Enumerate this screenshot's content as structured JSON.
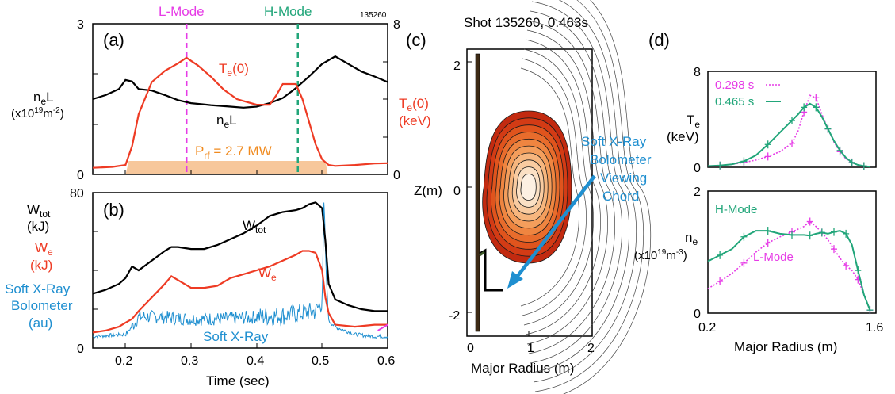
{
  "colors": {
    "black": "#000000",
    "red": "#ee3b24",
    "magenta": "#e63be6",
    "green": "#22a67a",
    "blue": "#1f8fd0",
    "orange": "#f6a54b",
    "rf_fill": "#f7c79b"
  },
  "panels": {
    "a": {
      "label": "(a)",
      "shot": "135260",
      "lmode": "L-Mode",
      "hmode": "H-Mode",
      "yl_top": "3",
      "yl_bot": "0",
      "yr_top": "8",
      "yr_bot": "0",
      "nel_axis": "n",
      "nel_axis_sub": "e",
      "nel_axis_tail": "L",
      "nel_units_a": "(x10",
      "nel_units_sup": "19",
      "nel_units_b": "m",
      "nel_units_sup2": "-2",
      "nel_units_c": ")",
      "te_axis": "T",
      "te_axis_sub": "e",
      "te_axis_tail": "(0)",
      "te_units": "(keV)",
      "te_curve_label": "T",
      "te_curve_sub": "e",
      "te_curve_tail": "(0)",
      "nel_curve_label": "n",
      "nel_curve_sub": "e",
      "nel_curve_tail": "L",
      "prf_label": "P",
      "prf_sub": "rf",
      "prf_tail": " = 2.7 MW"
    },
    "b": {
      "label": "(b)",
      "y_top": "80",
      "y_bot": "0",
      "x_ticks": [
        "0.2",
        "0.3",
        "0.4",
        "0.5",
        "0.6"
      ],
      "xlabel": "Time (sec)",
      "wtot_axis": "W",
      "wtot_axis_sub": "tot",
      "wtot_units": "(kJ)",
      "we_axis": "W",
      "we_axis_sub": "e",
      "we_units": "(kJ)",
      "sxr_axis_1": "Soft X-Ray",
      "sxr_axis_2": "Bolometer",
      "sxr_axis_3": "(au)",
      "wtot_curve": "W",
      "wtot_curve_sub": "tot",
      "we_curve": "W",
      "we_curve_sub": "e",
      "sxr_curve": "Soft X-Ray"
    },
    "c": {
      "label": "(c)",
      "title": "Shot 135260, 0.463s",
      "ylabel": "Z(m)",
      "xlabel": "Major Radius (m)",
      "y_ticks": [
        "2",
        "0",
        "-2"
      ],
      "x_ticks": [
        "0",
        "1",
        "2"
      ],
      "chord_1": "Soft X-Ray",
      "chord_2": "Bolometer",
      "chord_3": "Viewing",
      "chord_4": "Chord"
    },
    "d": {
      "label": "(d)",
      "te_top": "8",
      "te_bot": "0",
      "ne_top": "2",
      "ne_bot": "0",
      "te_axis": "T",
      "te_axis_sub": "e",
      "te_units": "(keV)",
      "ne_axis": "n",
      "ne_axis_sub": "e",
      "ne_units_a": "(x10",
      "ne_units_sup": "19",
      "ne_units_b": "m",
      "ne_units_sup2": "-3",
      "ne_units_c": ")",
      "legend_1": "0.298 s",
      "legend_2": "0.465 s",
      "hmode": "H-Mode",
      "lmode": "L-Mode",
      "x_ticks": [
        "0.2",
        "1.6"
      ],
      "xlabel": "Major Radius (m)"
    }
  },
  "chart_data": [
    {
      "id": "a",
      "type": "line",
      "xlim": [
        0.15,
        0.6
      ],
      "ylim_left": [
        0,
        3
      ],
      "ylim_right": [
        0,
        8
      ],
      "vlines": [
        {
          "x": 0.293,
          "label": "L-Mode"
        },
        {
          "x": 0.463,
          "label": "H-Mode"
        }
      ],
      "series": [
        {
          "axis": "left",
          "x": [
            0.15,
            0.17,
            0.19,
            0.2,
            0.21,
            0.22,
            0.24,
            0.26,
            0.28,
            0.3,
            0.33,
            0.36,
            0.38,
            0.4,
            0.42,
            0.44,
            0.46,
            0.48,
            0.5,
            0.52,
            0.54,
            0.56,
            0.58,
            0.6
          ],
          "y": [
            1.5,
            1.58,
            1.7,
            1.88,
            1.85,
            1.7,
            1.67,
            1.58,
            1.48,
            1.42,
            1.38,
            1.35,
            1.33,
            1.35,
            1.42,
            1.52,
            1.72,
            1.95,
            2.2,
            2.35,
            2.2,
            2.05,
            1.95,
            1.84
          ]
        },
        {
          "axis": "right",
          "name": "T(0)",
          "x": [
            0.15,
            0.18,
            0.2,
            0.21,
            0.22,
            0.24,
            0.26,
            0.28,
            0.293,
            0.31,
            0.33,
            0.35,
            0.37,
            0.38,
            0.4,
            0.42,
            0.43,
            0.44,
            0.46,
            0.47,
            0.48,
            0.49,
            0.5,
            0.51,
            0.52,
            0.55,
            0.58,
            0.6
          ],
          "y": [
            0.35,
            0.4,
            0.5,
            1.5,
            3.2,
            4.9,
            5.5,
            5.9,
            6.2,
            5.8,
            5.2,
            4.5,
            4.0,
            3.9,
            3.7,
            3.7,
            4.2,
            4.8,
            4.8,
            4.0,
            2.8,
            1.6,
            0.8,
            0.5,
            0.45,
            0.5,
            0.58,
            0.6
          ]
        }
      ],
      "rf_power": {
        "label": "P = 2.7 MW",
        "x": [
          0.205,
          0.505
        ]
      }
    },
    {
      "id": "b",
      "type": "line",
      "xlim": [
        0.15,
        0.6
      ],
      "ylim": [
        0,
        80
      ],
      "xlabel": "Time (sec)",
      "series": [
        {
          "name": "W",
          "x": [
            0.15,
            0.17,
            0.19,
            0.2,
            0.21,
            0.22,
            0.24,
            0.26,
            0.27,
            0.28,
            0.3,
            0.32,
            0.34,
            0.36,
            0.38,
            0.4,
            0.42,
            0.44,
            0.46,
            0.47,
            0.48,
            0.49,
            0.5,
            0.505,
            0.51,
            0.52,
            0.54,
            0.56,
            0.58,
            0.6
          ],
          "y": [
            28,
            30,
            33,
            36,
            42,
            40,
            45,
            50,
            52,
            52,
            51,
            51,
            53,
            56,
            59,
            63,
            68,
            70,
            71,
            72,
            74,
            75,
            72,
            55,
            33,
            25,
            22,
            20,
            19,
            19
          ]
        },
        {
          "name": "W",
          "x": [
            0.15,
            0.17,
            0.19,
            0.2,
            0.21,
            0.22,
            0.24,
            0.26,
            0.27,
            0.28,
            0.3,
            0.32,
            0.34,
            0.36,
            0.38,
            0.4,
            0.42,
            0.44,
            0.46,
            0.47,
            0.48,
            0.49,
            0.5,
            0.505,
            0.51,
            0.52,
            0.55,
            0.58,
            0.6
          ],
          "y": [
            8,
            9,
            11,
            13,
            15,
            19,
            26,
            33,
            37,
            35,
            31,
            31,
            32,
            36,
            38,
            40,
            42,
            45,
            48,
            50,
            50,
            49,
            40,
            26,
            18,
            12,
            11,
            12,
            12
          ]
        },
        {
          "name": "Soft X-Ray",
          "x": [
            0.15,
            0.2,
            0.21,
            0.22,
            0.25,
            0.3,
            0.35,
            0.4,
            0.45,
            0.49,
            0.5,
            0.503,
            0.506,
            0.51,
            0.52,
            0.55,
            0.58,
            0.6
          ],
          "y": [
            6,
            7,
            11,
            16,
            16,
            15,
            15,
            16,
            17,
            19,
            24,
            78,
            40,
            14,
            11,
            7,
            6,
            6
          ]
        }
      ]
    },
    {
      "id": "c",
      "type": "contour",
      "title": "Shot 135260, 0.463s",
      "xlim": [
        0,
        2
      ],
      "ylim": [
        -2.3,
        2.3
      ],
      "xlabel": "Major Radius (m)",
      "ylabel": "Z(m)",
      "magnetic_axis": {
        "R": 1.0,
        "Z": 0.0
      }
    },
    {
      "id": "d-te",
      "type": "line",
      "xlim": [
        0.2,
        1.6
      ],
      "ylim": [
        0,
        8
      ],
      "series": [
        {
          "name": "0.298 s",
          "style": "dotted",
          "x": [
            0.2,
            0.3,
            0.4,
            0.5,
            0.6,
            0.7,
            0.8,
            0.9,
            0.95,
            1.0,
            1.05,
            1.1,
            1.15,
            1.2,
            1.25,
            1.3,
            1.35,
            1.4,
            1.45,
            1.5,
            1.55
          ],
          "y": [
            0.1,
            0.15,
            0.25,
            0.4,
            0.6,
            0.9,
            1.3,
            2.0,
            3.0,
            4.6,
            6.0,
            5.8,
            4.4,
            3.2,
            2.1,
            1.3,
            0.7,
            0.4,
            0.2,
            0.1,
            0.05
          ]
        },
        {
          "name": "0.465 s",
          "style": "solid",
          "x": [
            0.2,
            0.3,
            0.4,
            0.5,
            0.6,
            0.7,
            0.8,
            0.9,
            0.95,
            1.0,
            1.05,
            1.1,
            1.15,
            1.2,
            1.25,
            1.3,
            1.35,
            1.4,
            1.45,
            1.5,
            1.55
          ],
          "y": [
            0.1,
            0.15,
            0.25,
            0.5,
            1.0,
            1.9,
            2.9,
            3.9,
            4.4,
            5.0,
            5.3,
            5.0,
            4.2,
            3.2,
            2.2,
            1.4,
            0.8,
            0.4,
            0.2,
            0.1,
            0.05
          ]
        }
      ]
    },
    {
      "id": "d-ne",
      "type": "line",
      "xlim": [
        0.2,
        1.6
      ],
      "ylim": [
        0,
        2
      ],
      "xlabel": "Major Radius (m)",
      "series": [
        {
          "name": "L-Mode",
          "style": "dotted",
          "x": [
            0.2,
            0.3,
            0.4,
            0.5,
            0.6,
            0.7,
            0.8,
            0.9,
            1.0,
            1.05,
            1.1,
            1.15,
            1.2,
            1.25,
            1.3,
            1.35,
            1.4,
            1.45,
            1.5,
            1.55
          ],
          "y": [
            0.4,
            0.52,
            0.65,
            0.82,
            1.0,
            1.15,
            1.25,
            1.33,
            1.42,
            1.5,
            1.42,
            1.32,
            1.2,
            1.05,
            0.9,
            0.78,
            0.7,
            0.55,
            0.3,
            0.05
          ]
        },
        {
          "name": "H-Mode",
          "style": "solid",
          "x": [
            0.2,
            0.3,
            0.4,
            0.5,
            0.6,
            0.7,
            0.8,
            0.9,
            1.0,
            1.05,
            1.1,
            1.15,
            1.2,
            1.25,
            1.3,
            1.35,
            1.4,
            1.45,
            1.5,
            1.55
          ],
          "y": [
            0.85,
            0.95,
            1.05,
            1.25,
            1.35,
            1.35,
            1.3,
            1.28,
            1.28,
            1.27,
            1.3,
            1.32,
            1.3,
            1.33,
            1.35,
            1.3,
            1.12,
            0.7,
            0.3,
            0.05
          ]
        }
      ]
    }
  ]
}
